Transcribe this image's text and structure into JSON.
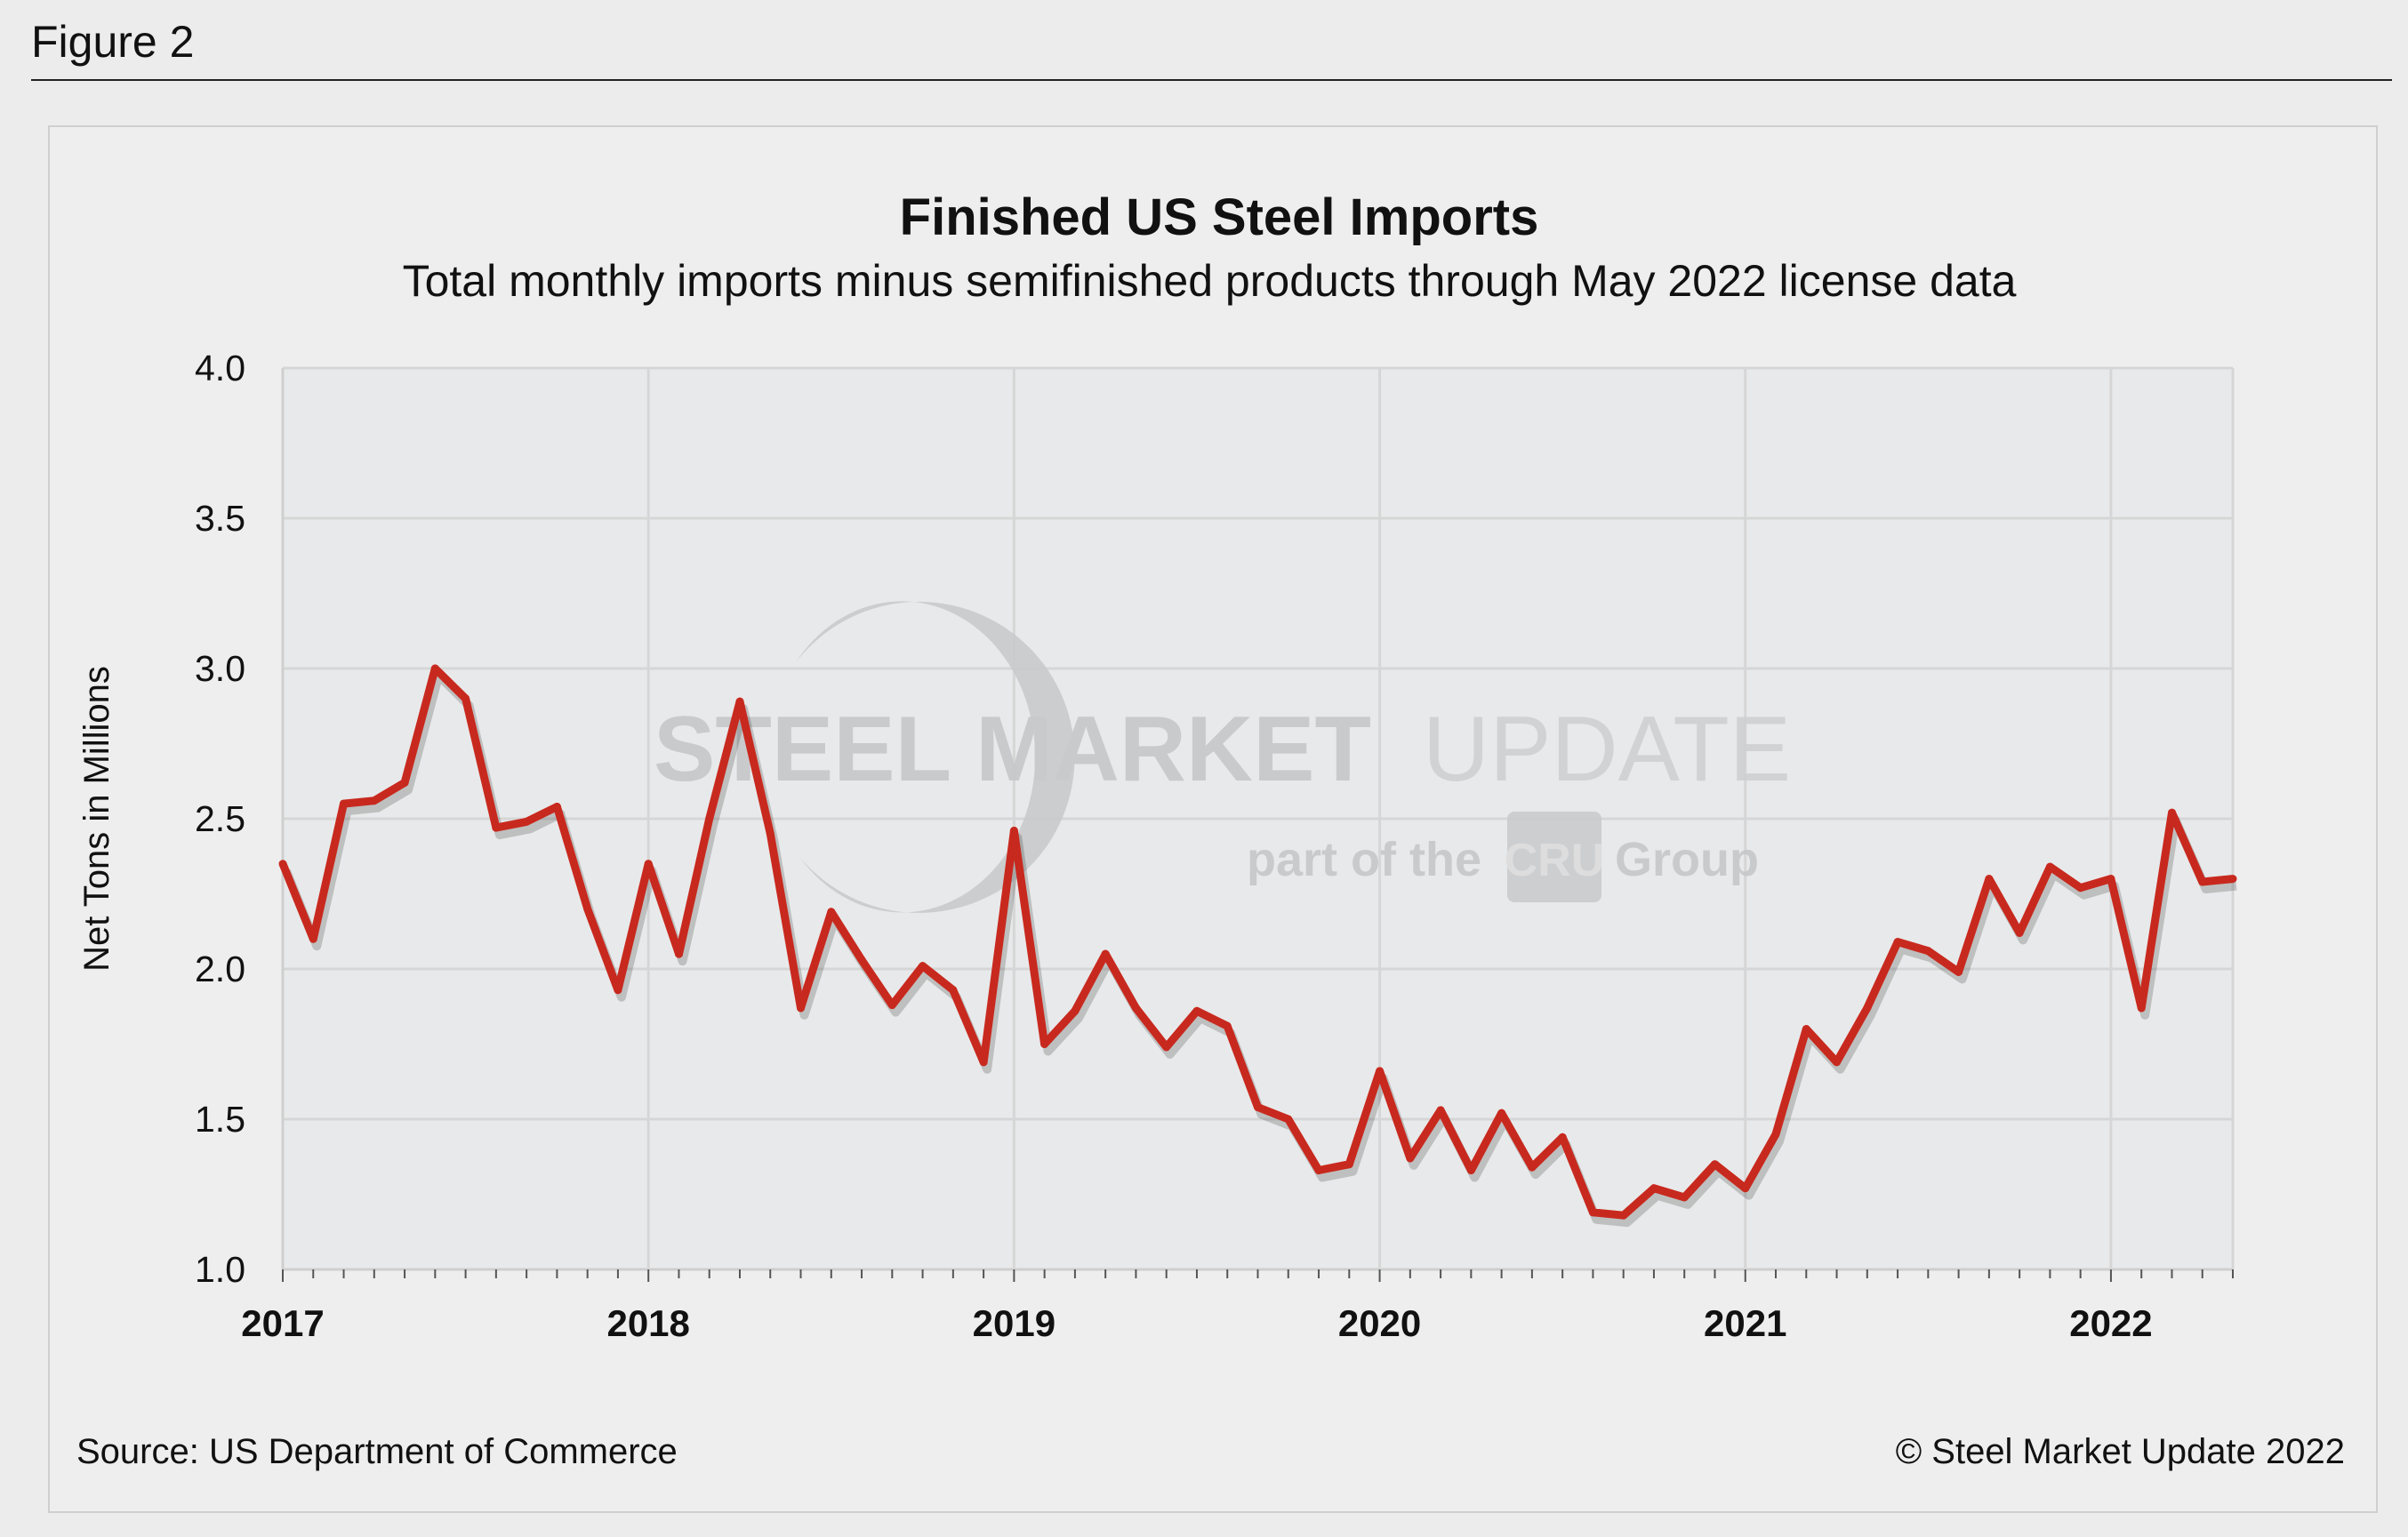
{
  "figure_label": "Figure 2",
  "source": "Source: US Department of Commerce",
  "copyright": "© Steel Market Update 2022",
  "watermark": {
    "line1a": "STEEL MARKET",
    "line1b": "UPDATE",
    "line2a": "part of the",
    "line2b": "CRU",
    "line2c": "Group"
  },
  "colors": {
    "line": "#c8291e",
    "plot_bg": "#e8e9ea",
    "grid": "#d6d6d6",
    "panel_bg": "#eeeeee"
  },
  "chart_data": {
    "type": "line",
    "title": "Finished US Steel Imports",
    "subtitle": "Total monthly imports minus semifinished products through May 2022 license data",
    "xlabel": "",
    "ylabel": "Net Tons in Millions",
    "ylim": [
      1.0,
      4.0
    ],
    "yticks": [
      "1.0",
      "1.5",
      "2.0",
      "2.5",
      "3.0",
      "3.5",
      "4.0"
    ],
    "xticks": [
      "2017",
      "2018",
      "2019",
      "2020",
      "2021",
      "2022"
    ],
    "x_start": "2017-01",
    "x_end": "2022-05",
    "grid": true,
    "legend": "none",
    "x": [
      "2017-01",
      "2017-02",
      "2017-03",
      "2017-04",
      "2017-05",
      "2017-06",
      "2017-07",
      "2017-08",
      "2017-09",
      "2017-10",
      "2017-11",
      "2017-12",
      "2018-01",
      "2018-02",
      "2018-03",
      "2018-04",
      "2018-05",
      "2018-06",
      "2018-07",
      "2018-08",
      "2018-09",
      "2018-10",
      "2018-11",
      "2018-12",
      "2019-01",
      "2019-02",
      "2019-03",
      "2019-04",
      "2019-05",
      "2019-06",
      "2019-07",
      "2019-08",
      "2019-09",
      "2019-10",
      "2019-11",
      "2019-12",
      "2020-01",
      "2020-02",
      "2020-03",
      "2020-04",
      "2020-05",
      "2020-06",
      "2020-07",
      "2020-08",
      "2020-09",
      "2020-10",
      "2020-11",
      "2020-12",
      "2021-01",
      "2021-02",
      "2021-03",
      "2021-04",
      "2021-05",
      "2021-06",
      "2021-07",
      "2021-08",
      "2021-09",
      "2021-10",
      "2021-11",
      "2021-12",
      "2022-01",
      "2022-02",
      "2022-03",
      "2022-04",
      "2022-05"
    ],
    "values": [
      2.35,
      2.1,
      2.55,
      2.56,
      2.62,
      3.0,
      2.9,
      2.47,
      2.49,
      2.54,
      2.2,
      1.93,
      2.35,
      2.05,
      2.5,
      2.89,
      2.45,
      1.87,
      2.19,
      2.03,
      1.88,
      2.01,
      1.93,
      1.69,
      2.46,
      1.75,
      1.86,
      2.05,
      1.87,
      1.74,
      1.86,
      1.81,
      1.54,
      1.5,
      1.33,
      1.35,
      1.66,
      1.37,
      1.53,
      1.33,
      1.52,
      1.34,
      1.44,
      1.19,
      1.18,
      1.27,
      1.24,
      1.35,
      1.27,
      1.45,
      1.8,
      1.69,
      1.87,
      2.09,
      2.06,
      1.99,
      2.3,
      2.12,
      2.34,
      2.27,
      2.3,
      1.87,
      2.52,
      2.29,
      2.3
    ]
  }
}
